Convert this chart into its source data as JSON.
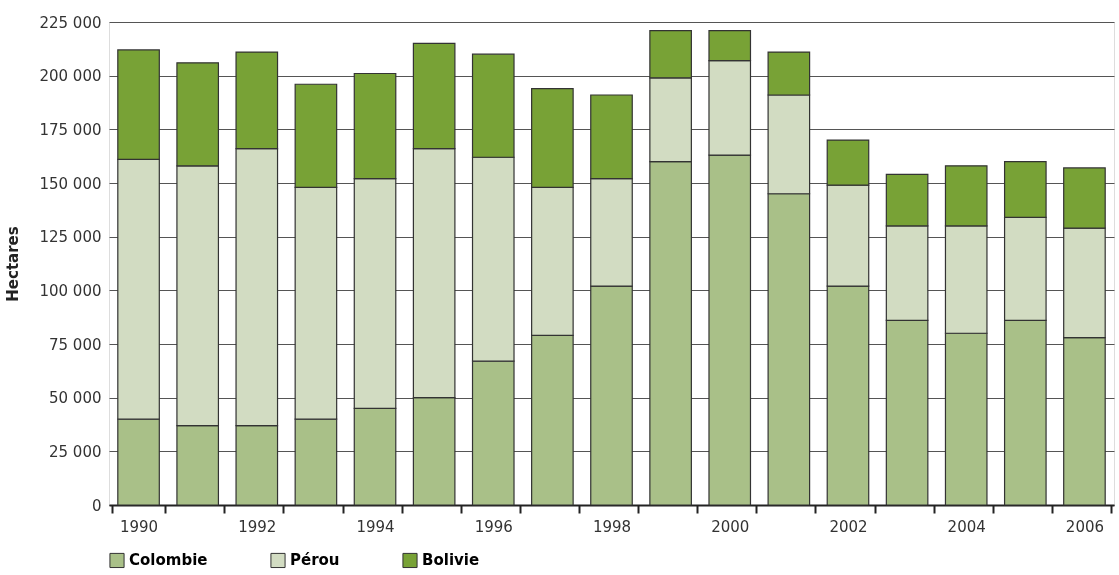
{
  "chart_data": {
    "type": "bar",
    "stacked": true,
    "ylabel": "Hectares",
    "categories": [
      "1990",
      null,
      "1992",
      null,
      "1994",
      null,
      "1996",
      null,
      "1998",
      null,
      "2000",
      null,
      "2002",
      null,
      "2004",
      null,
      "2006"
    ],
    "series": [
      {
        "name": "Colombie",
        "color": "#a9c088",
        "values": [
          40000,
          37000,
          37000,
          40000,
          45000,
          50000,
          67000,
          79000,
          102000,
          160000,
          163000,
          145000,
          102000,
          86000,
          80000,
          86000,
          78000
        ]
      },
      {
        "name": "Pérou",
        "color": "#d2dcc2",
        "values": [
          121000,
          121000,
          129000,
          108000,
          107000,
          116000,
          95000,
          69000,
          50000,
          39000,
          44000,
          46000,
          47000,
          44000,
          50000,
          48000,
          51000
        ]
      },
      {
        "name": "Bolivie",
        "color": "#78a236",
        "values": [
          51000,
          48000,
          45000,
          48000,
          49000,
          49000,
          48000,
          46000,
          39000,
          22000,
          14000,
          20000,
          21000,
          24000,
          28000,
          26000,
          28000
        ]
      }
    ],
    "ylim": [
      0,
      225000
    ],
    "yticks": [
      {
        "value": 0,
        "label": "0"
      },
      {
        "value": 25000,
        "label": "25 000"
      },
      {
        "value": 50000,
        "label": "50 000"
      },
      {
        "value": 75000,
        "label": "75 000"
      },
      {
        "value": 100000,
        "label": "100 000"
      },
      {
        "value": 125000,
        "label": "125 000"
      },
      {
        "value": 150000,
        "label": "150 000"
      },
      {
        "value": 175000,
        "label": "175 000"
      },
      {
        "value": 200000,
        "label": "200 000"
      },
      {
        "value": 225000,
        "label": "225 000"
      }
    ],
    "grid": "y",
    "legend": "bottom"
  }
}
